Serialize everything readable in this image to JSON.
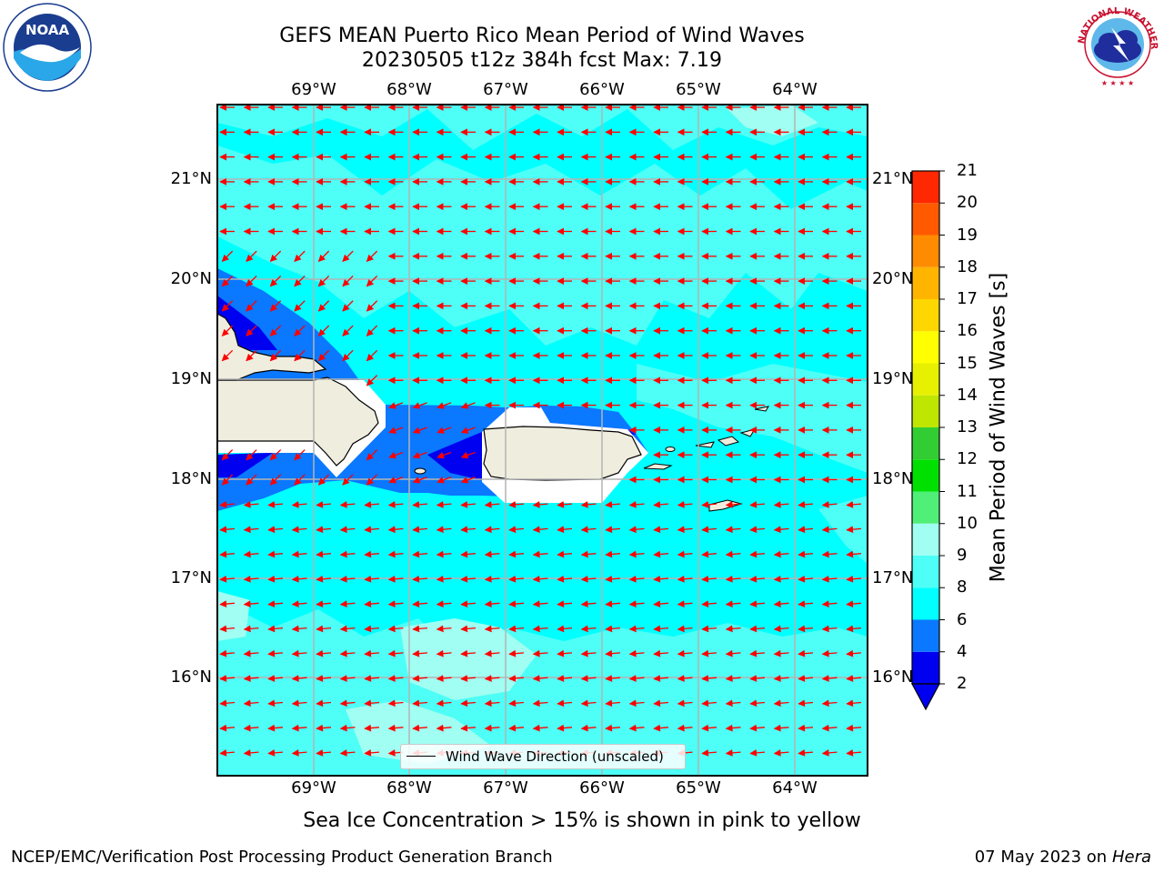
{
  "header": {
    "title_line1": "GEFS MEAN Puerto Rico Mean Period of Wind Waves",
    "title_line2": "20230505 t12z 384h fcst   Max: 7.19"
  },
  "map": {
    "lon_labels": [
      "69°W",
      "68°W",
      "67°W",
      "66°W",
      "65°W",
      "64°W"
    ],
    "lat_labels": [
      "21°N",
      "20°N",
      "19°N",
      "18°N",
      "17°N",
      "16°N"
    ],
    "ocean_color": "#00ffff",
    "land_color": "#efedde",
    "arrow_color": "#ff0000",
    "legend_label": "Wind Wave Direction (unscaled)"
  },
  "colorbar": {
    "title": "Mean Period of Wind Waves [s]",
    "levels": [
      "2",
      "4",
      "6",
      "8",
      "9",
      "10",
      "11",
      "12",
      "13",
      "14",
      "15",
      "16",
      "17",
      "18",
      "19",
      "20",
      "21"
    ],
    "colors": [
      "#0000f0",
      "#0a78ff",
      "#00ffff",
      "#4dfff6",
      "#a0fff2",
      "#50f078",
      "#00e000",
      "#32cd32",
      "#bee600",
      "#e6f000",
      "#ffff00",
      "#ffd700",
      "#ffb400",
      "#ff8c00",
      "#ff5a00",
      "#ff2800",
      "#ff0000"
    ]
  },
  "footer": {
    "note": "Sea Ice Concentration > 15% is shown in pink to yellow",
    "left": "NCEP/EMC/Verification Post Processing Product Generation Branch",
    "date": "07 May 2023 on",
    "host": "Hera"
  },
  "logos": {
    "noaa_text": "NOAA",
    "nws_text": "NATIONAL WEATHER SERVICE"
  }
}
